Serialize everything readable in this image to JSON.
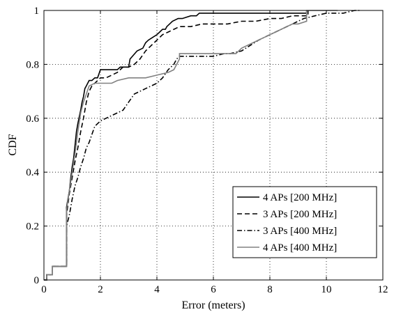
{
  "chart_data": {
    "type": "line",
    "xlabel": "Error (meters)",
    "ylabel": "CDF",
    "xlim": [
      0,
      12
    ],
    "ylim": [
      0,
      1
    ],
    "xticks": [
      0,
      2,
      4,
      6,
      8,
      10,
      12
    ],
    "yticks": [
      0,
      0.2,
      0.4,
      0.6,
      0.8,
      1
    ],
    "grid": true,
    "legend_position": "bottom-right",
    "series": [
      {
        "name": "4 APs [200 MHz]",
        "color": "#000000",
        "dash": "solid",
        "x": [
          0,
          0.1,
          0.1,
          0.3,
          0.3,
          0.8,
          0.8,
          0.9,
          0.95,
          1.0,
          1.05,
          1.1,
          1.15,
          1.2,
          1.3,
          1.35,
          1.4,
          1.45,
          1.5,
          1.6,
          1.7,
          1.8,
          1.9,
          2.0,
          2.6,
          2.7,
          3.0,
          3.05,
          3.3,
          3.5,
          3.6,
          3.7,
          3.85,
          4.0,
          4.1,
          4.2,
          4.3,
          4.35,
          4.45,
          4.55,
          4.75,
          4.9,
          5.2,
          5.4,
          5.5,
          6.0,
          9.3,
          9.3
        ],
        "y": [
          0,
          0,
          0.02,
          0.02,
          0.05,
          0.05,
          0.27,
          0.33,
          0.38,
          0.42,
          0.45,
          0.5,
          0.55,
          0.58,
          0.63,
          0.66,
          0.68,
          0.71,
          0.72,
          0.74,
          0.74,
          0.75,
          0.75,
          0.78,
          0.78,
          0.79,
          0.79,
          0.82,
          0.85,
          0.86,
          0.88,
          0.89,
          0.9,
          0.91,
          0.92,
          0.93,
          0.93,
          0.94,
          0.95,
          0.96,
          0.97,
          0.97,
          0.98,
          0.98,
          0.99,
          0.99,
          0.99,
          1.0
        ]
      },
      {
        "name": "3 APs [200 MHz]",
        "color": "#000000",
        "dash": "dashed",
        "x": [
          0,
          0.1,
          0.1,
          0.3,
          0.3,
          0.8,
          0.8,
          0.9,
          1.0,
          1.1,
          1.2,
          1.3,
          1.4,
          1.5,
          1.6,
          1.7,
          1.8,
          2.0,
          2.2,
          2.4,
          2.6,
          2.8,
          3.0,
          3.2,
          3.4,
          3.6,
          3.8,
          4.0,
          4.2,
          4.4,
          4.6,
          4.8,
          5.0,
          5.2,
          5.6,
          6.0,
          6.5,
          7.0,
          7.5,
          8.0,
          8.4,
          8.8,
          9.2,
          9.35,
          9.35
        ],
        "y": [
          0,
          0,
          0.02,
          0.02,
          0.05,
          0.05,
          0.24,
          0.32,
          0.38,
          0.44,
          0.49,
          0.55,
          0.6,
          0.66,
          0.7,
          0.72,
          0.73,
          0.75,
          0.75,
          0.76,
          0.77,
          0.79,
          0.79,
          0.8,
          0.82,
          0.85,
          0.87,
          0.89,
          0.91,
          0.92,
          0.93,
          0.94,
          0.94,
          0.94,
          0.95,
          0.95,
          0.95,
          0.96,
          0.96,
          0.97,
          0.97,
          0.98,
          0.98,
          0.98,
          1.0
        ]
      },
      {
        "name": "3 APs [400 MHz]",
        "color": "#000000",
        "dash": "dashdot",
        "x": [
          0,
          0.1,
          0.1,
          0.3,
          0.3,
          0.8,
          0.8,
          0.9,
          1.0,
          1.1,
          1.2,
          1.3,
          1.4,
          1.5,
          1.6,
          1.7,
          1.8,
          2.0,
          2.2,
          2.4,
          2.6,
          2.8,
          3.0,
          3.2,
          3.4,
          3.6,
          3.8,
          4.0,
          4.2,
          4.4,
          4.6,
          4.7,
          4.8,
          5.0,
          5.5,
          6.0,
          6.4,
          6.6,
          7.0,
          7.3,
          7.6,
          7.8,
          8.0,
          8.4,
          8.8,
          9.2,
          9.6,
          10.0,
          10.6,
          11.0,
          11.2
        ],
        "y": [
          0,
          0,
          0.02,
          0.02,
          0.05,
          0.05,
          0.2,
          0.24,
          0.3,
          0.35,
          0.38,
          0.42,
          0.45,
          0.49,
          0.51,
          0.54,
          0.57,
          0.59,
          0.6,
          0.61,
          0.62,
          0.63,
          0.66,
          0.69,
          0.7,
          0.71,
          0.72,
          0.73,
          0.75,
          0.78,
          0.8,
          0.82,
          0.83,
          0.83,
          0.83,
          0.83,
          0.84,
          0.84,
          0.85,
          0.87,
          0.89,
          0.9,
          0.91,
          0.93,
          0.95,
          0.97,
          0.98,
          0.99,
          0.99,
          1.0,
          1.0
        ]
      },
      {
        "name": "4 APs [400 MHz]",
        "color": "#808080",
        "dash": "solid",
        "x": [
          0,
          0.1,
          0.1,
          0.3,
          0.3,
          0.8,
          0.8,
          0.9,
          1.0,
          1.1,
          1.2,
          1.3,
          1.4,
          1.5,
          1.6,
          1.8,
          2.0,
          2.4,
          2.6,
          3.0,
          3.6,
          4.0,
          4.4,
          4.6,
          4.8,
          4.8,
          5.2,
          6.0,
          6.8,
          7.0,
          7.4,
          7.8,
          8.0,
          8.2,
          8.4,
          8.6,
          8.8,
          9.0,
          9.3,
          9.3,
          10.4
        ],
        "y": [
          0,
          0,
          0.02,
          0.02,
          0.05,
          0.05,
          0.26,
          0.33,
          0.4,
          0.47,
          0.55,
          0.62,
          0.66,
          0.69,
          0.72,
          0.73,
          0.73,
          0.73,
          0.74,
          0.75,
          0.75,
          0.76,
          0.77,
          0.78,
          0.82,
          0.84,
          0.84,
          0.84,
          0.84,
          0.86,
          0.88,
          0.9,
          0.91,
          0.92,
          0.93,
          0.94,
          0.95,
          0.95,
          0.96,
          1.0,
          1.0
        ]
      }
    ]
  }
}
